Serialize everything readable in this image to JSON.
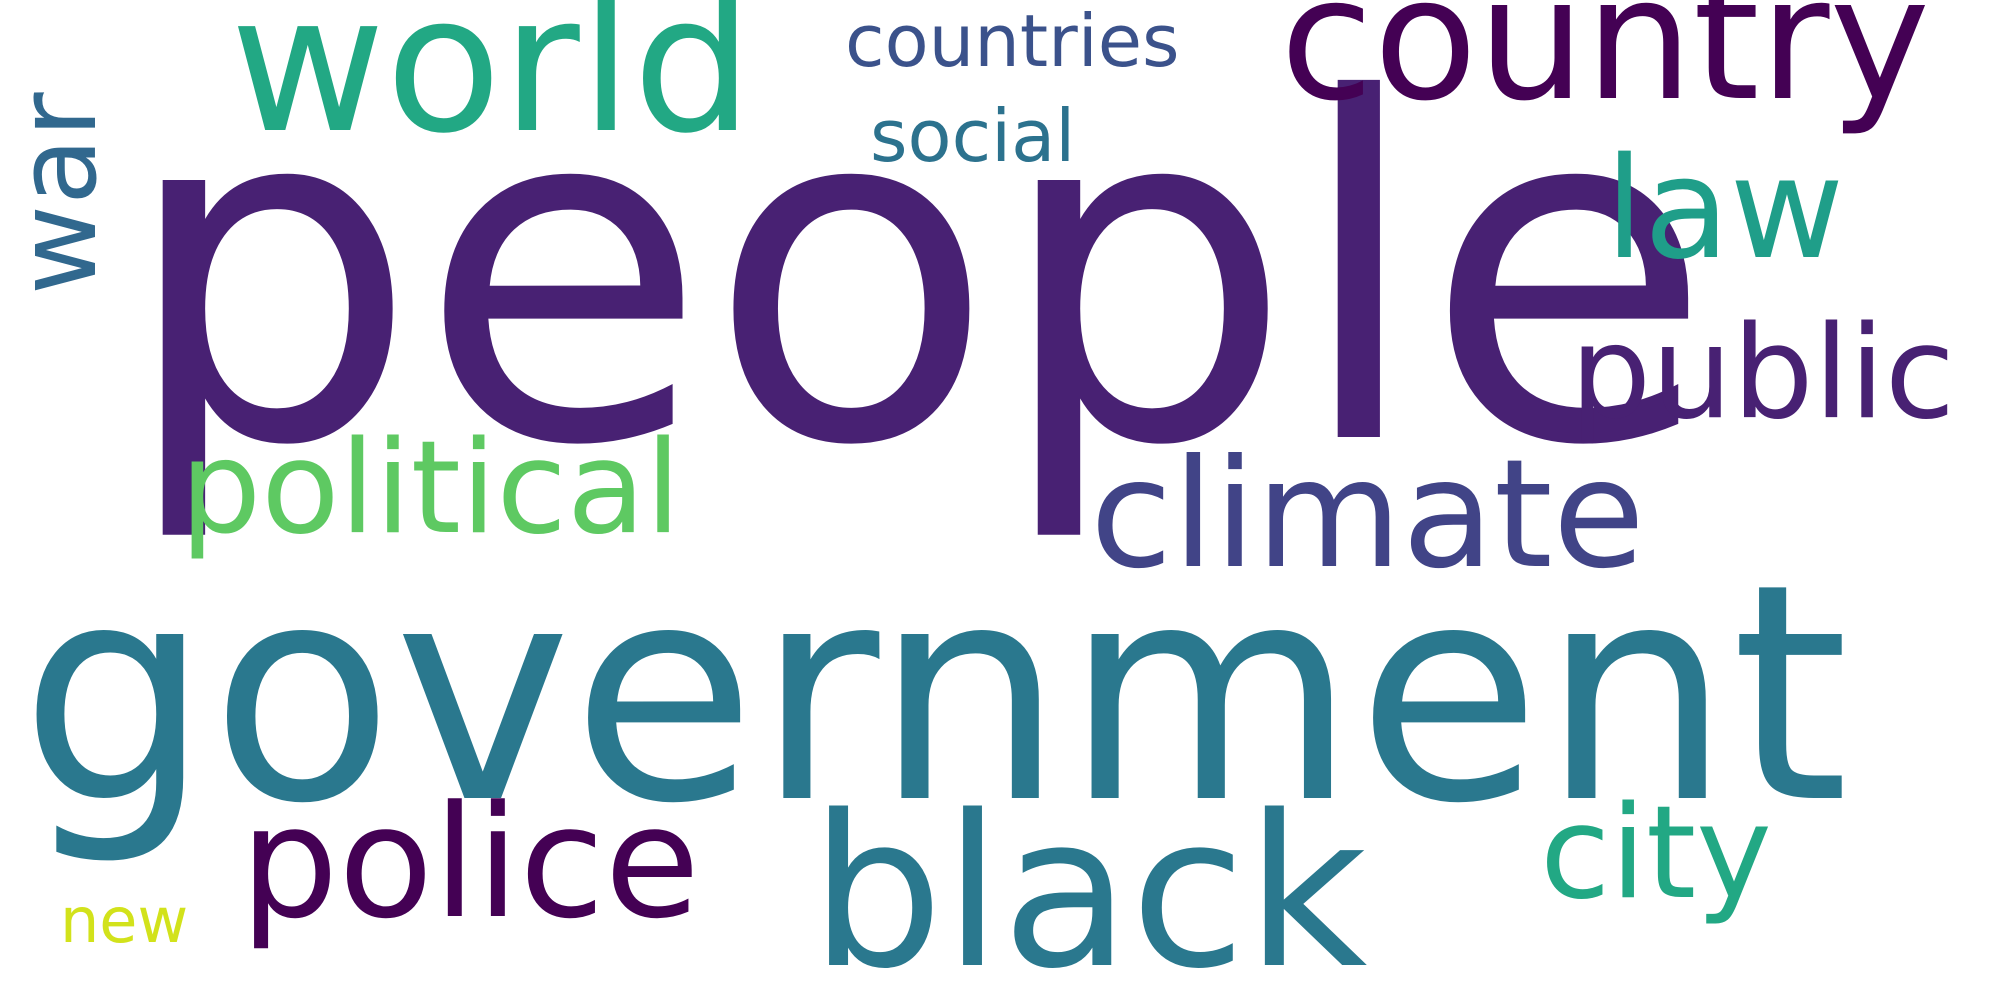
{
  "wordcloud": {
    "words": [
      {
        "id": "people",
        "text": "people",
        "color": "#482173"
      },
      {
        "id": "government",
        "text": "government",
        "color": "#2a788e"
      },
      {
        "id": "black",
        "text": "black",
        "color": "#2a788e"
      },
      {
        "id": "world",
        "text": "world",
        "color": "#22a884"
      },
      {
        "id": "country",
        "text": "country",
        "color": "#440154"
      },
      {
        "id": "climate",
        "text": "climate",
        "color": "#414487"
      },
      {
        "id": "police",
        "text": "police",
        "color": "#440154"
      },
      {
        "id": "political",
        "text": "political",
        "color": "#5ec962"
      },
      {
        "id": "public",
        "text": "public",
        "color": "#482173"
      },
      {
        "id": "city",
        "text": "city",
        "color": "#22a884"
      },
      {
        "id": "law",
        "text": "law",
        "color": "#1f9e89"
      },
      {
        "id": "countries",
        "text": "countries",
        "color": "#3b528b"
      },
      {
        "id": "social",
        "text": "social",
        "color": "#2c728e"
      },
      {
        "id": "new",
        "text": "new",
        "color": "#d2e21b"
      },
      {
        "id": "war",
        "text": "war",
        "color": "#31688e"
      }
    ]
  }
}
